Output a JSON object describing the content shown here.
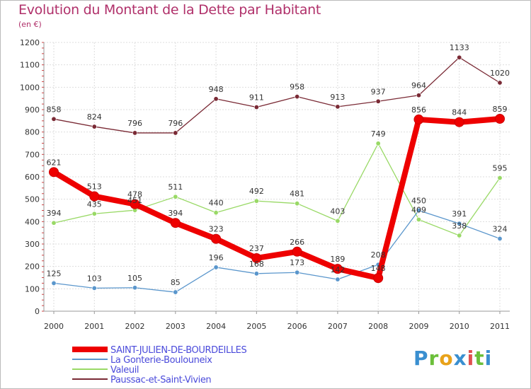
{
  "title": "Evolution du Montant de la Dette par Habitant",
  "subtitle": "(en €)",
  "logo_text": "Proxiti",
  "chart_data": {
    "type": "line",
    "x": [
      2000,
      2001,
      2002,
      2003,
      2004,
      2005,
      2006,
      2007,
      2008,
      2009,
      2010,
      2011
    ],
    "ylim": [
      0,
      1200
    ],
    "yticks": [
      0,
      100,
      200,
      300,
      400,
      500,
      600,
      700,
      800,
      900,
      1000,
      1100,
      1200
    ],
    "grid": true,
    "legend_position": "bottom-left",
    "series": [
      {
        "name": "Paussac-et-Saint-Vivien",
        "color": "#7a2a35",
        "values": [
          858,
          824,
          796,
          796,
          948,
          911,
          958,
          913,
          937,
          964,
          1133,
          1020
        ]
      },
      {
        "name": "Valeuil",
        "color": "#99d966",
        "values": [
          394,
          435,
          451,
          511,
          440,
          492,
          481,
          403,
          749,
          409,
          338,
          595
        ]
      },
      {
        "name": "La Gonterie-Boulouneix",
        "color": "#5a96cc",
        "values": [
          125,
          103,
          105,
          85,
          196,
          168,
          173,
          142,
          208,
          450,
          391,
          324
        ]
      },
      {
        "name": "SAINT-JULIEN-DE-BOURDEILLES",
        "color": "#ee0000",
        "values": [
          621,
          513,
          478,
          394,
          323,
          237,
          266,
          189,
          148,
          856,
          844,
          859
        ]
      }
    ]
  },
  "legend": [
    {
      "name": "SAINT-JULIEN-DE-BOURDEILLES",
      "color": "#ee0000"
    },
    {
      "name": "La Gonterie-Boulouneix",
      "color": "#5a96cc"
    },
    {
      "name": "Valeuil",
      "color": "#99d966"
    },
    {
      "name": "Paussac-et-Saint-Vivien",
      "color": "#7a2a35"
    }
  ]
}
